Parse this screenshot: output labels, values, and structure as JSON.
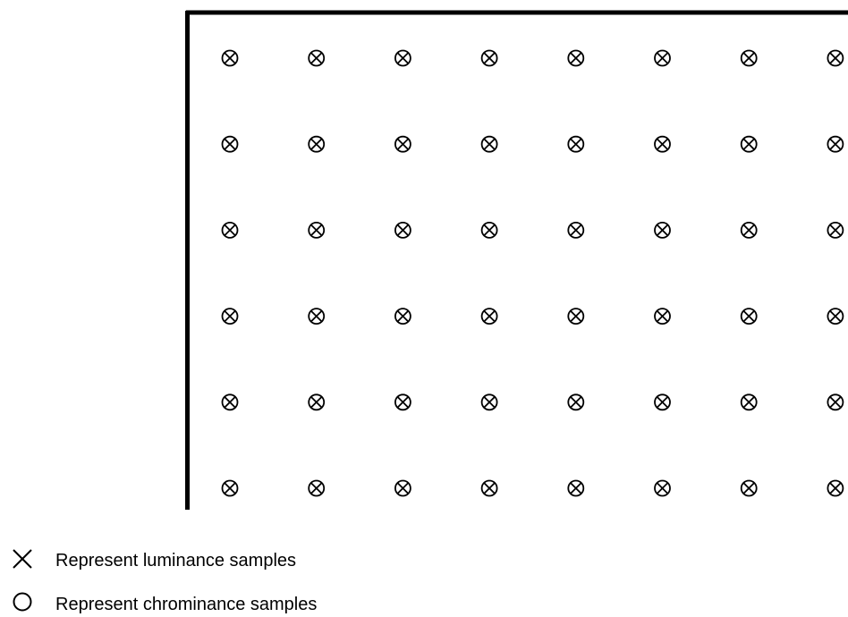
{
  "diagram": {
    "grid": {
      "rows": 6,
      "columns": 8
    },
    "legend": {
      "luminance_label": "Represent luminance samples",
      "chrominance_label": "Represent chrominance samples"
    },
    "colors": {
      "stroke": "#000000",
      "background": "#ffffff"
    },
    "icons": {
      "luminance": "cross-icon",
      "chrominance": "circle-icon",
      "sample": "circled-cross-icon"
    }
  }
}
